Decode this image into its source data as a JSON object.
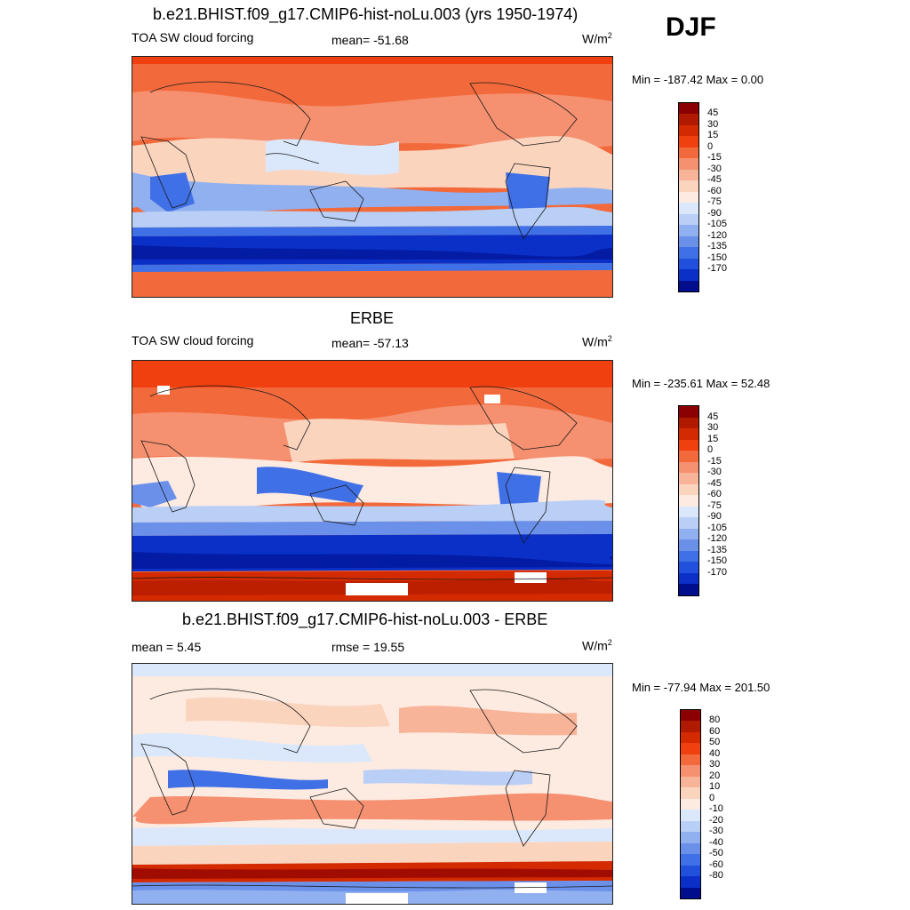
{
  "season": "DJF",
  "panels": [
    {
      "title": "b.e21.BHIST.f09_g17.CMIP6-hist-noLu.003 (yrs 1950-1974)",
      "left_label": "TOA SW cloud forcing",
      "center_label": "mean= -51.68",
      "units": "W/m",
      "units_exp": "2",
      "minmax": "Min = -187.42 Max =   0.00"
    },
    {
      "title": "ERBE",
      "left_label": "TOA SW cloud forcing",
      "center_label": "mean= -57.13",
      "units": "W/m",
      "units_exp": "2",
      "minmax": "Min = -235.61 Max =  52.48"
    },
    {
      "title": "b.e21.BHIST.f09_g17.CMIP6-hist-noLu.003 - ERBE",
      "left_label": "mean =   5.45",
      "center_label": "rmse =  19.55",
      "units": "W/m",
      "units_exp": "2",
      "minmax": "Min = -77.94 Max = 201.50"
    }
  ],
  "colorbars": {
    "field": {
      "labels": [
        "45",
        "30",
        "15",
        "0",
        "-15",
        "-30",
        "-45",
        "-60",
        "-75",
        "-90",
        "-105",
        "-120",
        "-135",
        "-150",
        "-170"
      ],
      "colors": [
        "#8b0000",
        "#b01b00",
        "#d42a00",
        "#f04010",
        "#f26a3c",
        "#f59070",
        "#f8b498",
        "#fbd4be",
        "#fdeae0",
        "#dbe8fb",
        "#b9cff6",
        "#90b0f0",
        "#6a90ea",
        "#4070e6",
        "#2050dc",
        "#0a30c8",
        "#000d8c"
      ]
    },
    "diff": {
      "labels": [
        "80",
        "60",
        "50",
        "40",
        "30",
        "20",
        "10",
        "0",
        "-10",
        "-20",
        "-30",
        "-40",
        "-50",
        "-60",
        "-80"
      ],
      "colors": [
        "#8b0000",
        "#b01b00",
        "#d42a00",
        "#f04010",
        "#f26a3c",
        "#f59070",
        "#f8b498",
        "#fbd4be",
        "#fdeae0",
        "#dbe8fb",
        "#b9cff6",
        "#90b0f0",
        "#6a90ea",
        "#4070e6",
        "#2050dc",
        "#0a30c8",
        "#000d8c"
      ]
    }
  }
}
